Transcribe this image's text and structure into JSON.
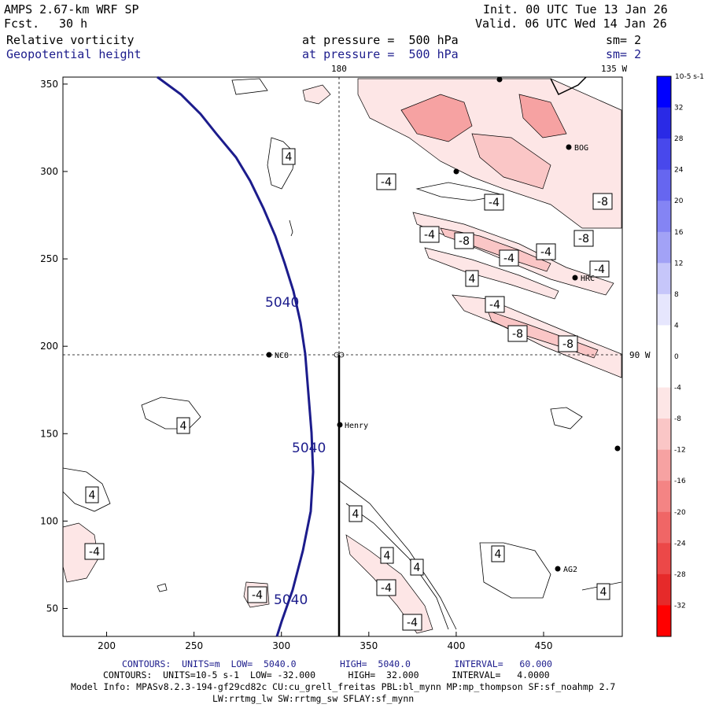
{
  "header": {
    "model": "AMPS 2.67-km WRF SP",
    "forecast_label": "Fcst.",
    "forecast_value": "30 h",
    "init": "Init. 00 UTC Tue 13 Jan 26",
    "valid": "Valid. 06 UTC Wed 14 Jan 26",
    "field1": {
      "name": "Relative vorticity",
      "level": "at pressure =  500 hPa",
      "smooth": "sm= 2"
    },
    "field2": {
      "name": "Geopotential height",
      "level": "at pressure =  500 hPa",
      "smooth": "sm= 2"
    }
  },
  "map_labels": {
    "lon_180": "180",
    "lon_135w": "135 W",
    "lon_90w": "90 W",
    "stations": [
      "NCO",
      "Henry",
      "HRC",
      "AG2",
      "BOG"
    ]
  },
  "chart_data": {
    "type": "contour",
    "xlim": [
      175,
      495
    ],
    "ylim": [
      34,
      354
    ],
    "xticks": [
      200,
      250,
      300,
      350,
      400,
      450
    ],
    "yticks": [
      50,
      100,
      150,
      200,
      250,
      300,
      350
    ],
    "height_contour": {
      "value": 5040,
      "units": "m",
      "label": "5040",
      "color": "#1c1c8c"
    },
    "vorticity_labels": [
      "4",
      "-4",
      "-8"
    ],
    "colorbar": {
      "units": "10-5 s-1",
      "ticks": [
        "32",
        "28",
        "24",
        "20",
        "16",
        "12",
        "8",
        "4",
        "0",
        "-4",
        "-8",
        "-12",
        "-16",
        "-20",
        "-24",
        "-28",
        "-32"
      ],
      "colors": [
        "#0000ff",
        "#2a2ae6",
        "#4848ec",
        "#6666f0",
        "#8484f4",
        "#a2a2f6",
        "#c6c6fa",
        "#e6e6fd",
        "#ffffff",
        "#ffffff",
        "#fde6e6",
        "#fac6c6",
        "#f6a2a2",
        "#f48484",
        "#f06666",
        "#ec4848",
        "#e62a2a",
        "#ff0000"
      ]
    }
  },
  "footer": {
    "contours1": "CONTOURS:  UNITS=m  LOW=  5040.0        HIGH=  5040.0        INTERVAL=   60.000",
    "contours2": "CONTOURS:  UNITS=10-5 s-1  LOW= -32.000      HIGH=  32.000      INTERVAL=   4.0000",
    "model_info": "Model Info: MPASv8.2.3-194-gf29cd82c CU:cu_grell_freitas PBL:bl_mynn MP:mp_thompson SF:sf_noahmp 2.7",
    "model_info2": "LW:rrtmg_lw SW:rrtmg_sw SFLAY:sf_mynn"
  }
}
